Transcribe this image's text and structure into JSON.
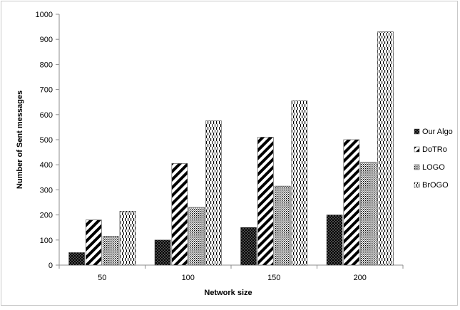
{
  "chart_data": {
    "type": "bar",
    "title": "",
    "xlabel": "Network size",
    "ylabel": "Number of Sent messages",
    "categories": [
      "50",
      "100",
      "150",
      "200"
    ],
    "ylim": [
      0,
      1000
    ],
    "yticks": [
      0,
      100,
      200,
      300,
      400,
      500,
      600,
      700,
      800,
      900,
      1000
    ],
    "grid": false,
    "legend_position": "right",
    "series": [
      {
        "name": "Our Algo",
        "values": [
          50,
          100,
          150,
          200
        ],
        "pattern": "dots-on-black"
      },
      {
        "name": "DoTRo",
        "values": [
          180,
          405,
          510,
          500
        ],
        "pattern": "diagonal-stripes"
      },
      {
        "name": "LOGO",
        "values": [
          115,
          230,
          315,
          410
        ],
        "pattern": "dense-dots"
      },
      {
        "name": "BrOGO",
        "values": [
          215,
          575,
          655,
          930
        ],
        "pattern": "vertical-dashes"
      }
    ]
  }
}
